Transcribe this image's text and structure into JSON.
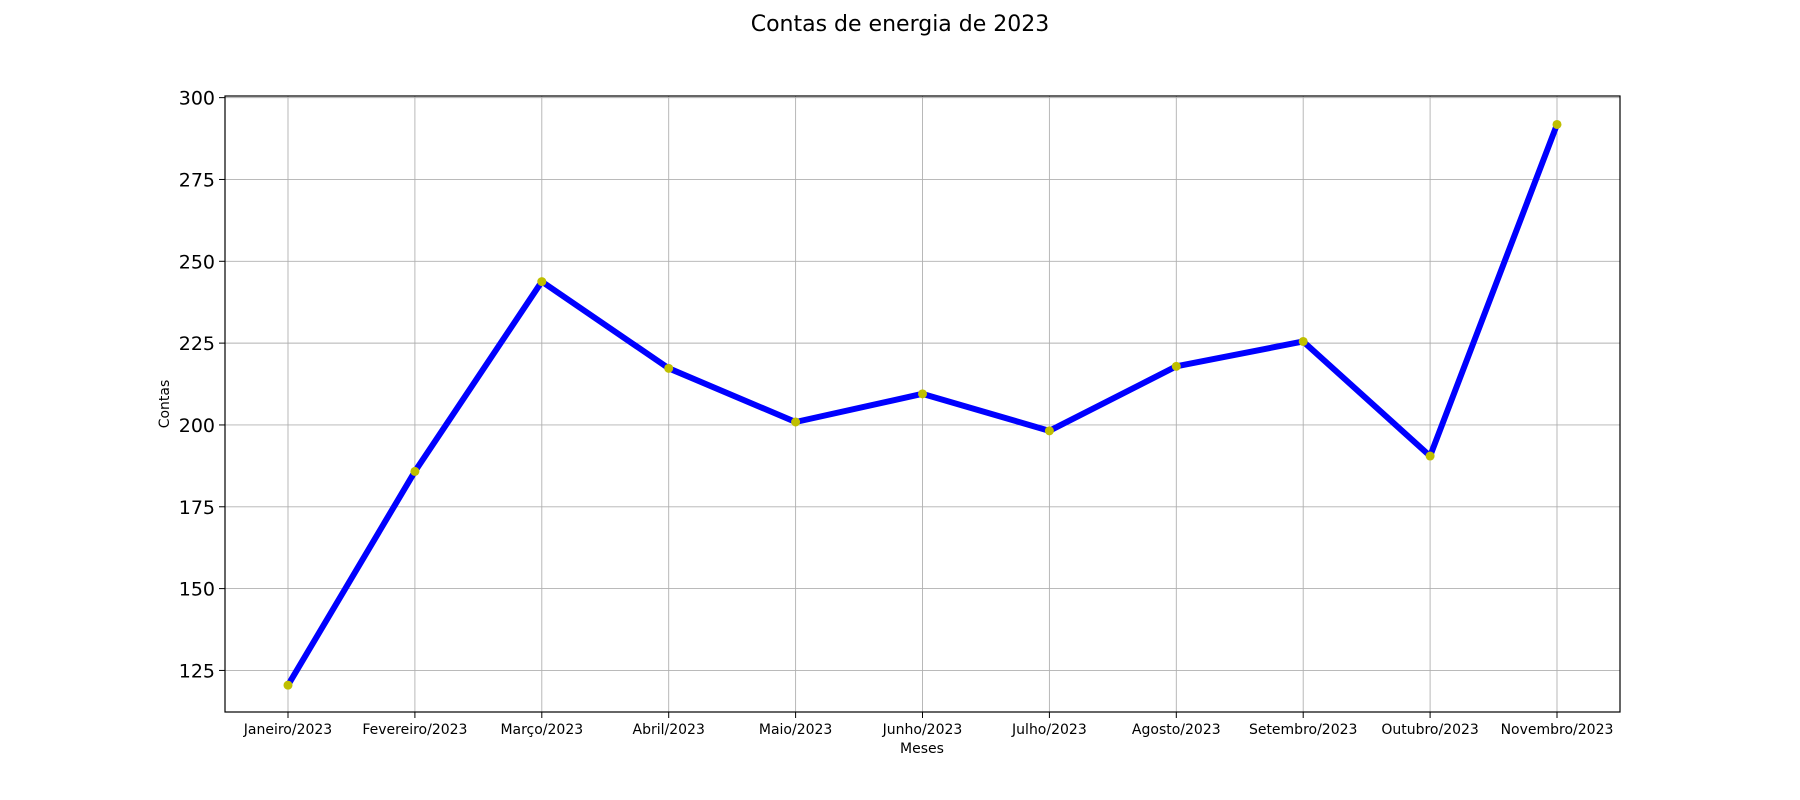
{
  "chart_data": {
    "type": "line",
    "title": "Contas de energia de 2023",
    "xlabel": "Meses",
    "ylabel": "Contas",
    "categories": [
      "Janeiro/2023",
      "Fevereiro/2023",
      "Março/2023",
      "Abril/2023",
      "Maio/2023",
      "Junho/2023",
      "Julho/2023",
      "Agosto/2023",
      "Setembro/2023",
      "Outubro/2023",
      "Novembro/2023"
    ],
    "series": [
      {
        "values": [
          120.5,
          185.8,
          243.8,
          217.3,
          200.9,
          209.5,
          198.2,
          217.9,
          225.5,
          190.5,
          291.8
        ]
      }
    ],
    "yticks": [
      125,
      150,
      175,
      200,
      225,
      250,
      275,
      300
    ],
    "ylim": [
      112.3,
      300.5
    ],
    "grid": true,
    "line_color": "#0000ff",
    "marker_color": "#bfbf00"
  }
}
